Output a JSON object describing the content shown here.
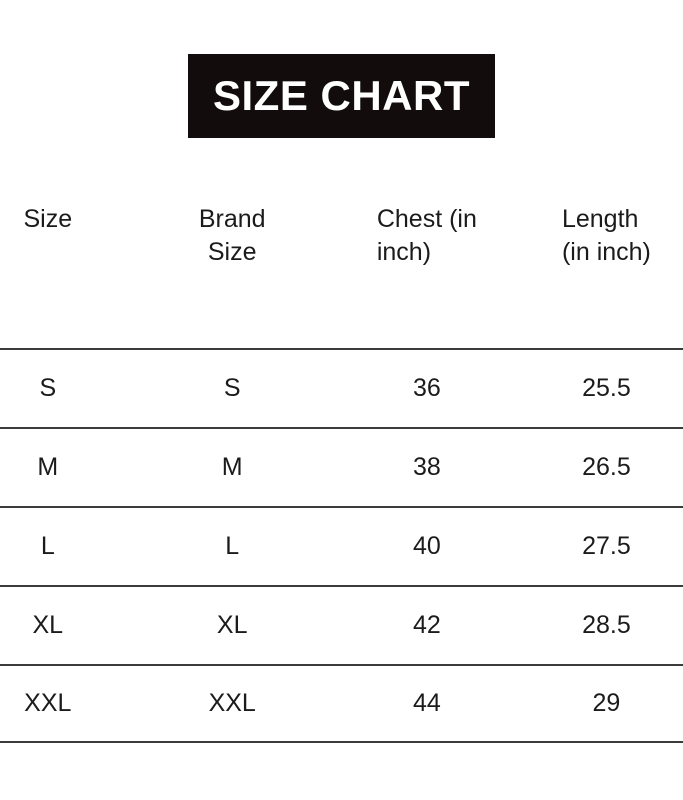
{
  "banner": {
    "title": "SIZE CHART"
  },
  "table_header": {
    "labels": [
      "Size",
      "Brand\nSize",
      "Chest (in\ninch)",
      "Length\n(in inch)"
    ]
  },
  "chart_data": {
    "type": "table",
    "title": "SIZE CHART",
    "columns": [
      "Size",
      "Brand Size",
      "Chest (in inch)",
      "Length (in inch)"
    ],
    "rows": [
      [
        "S",
        "S",
        "36",
        "25.5"
      ],
      [
        "M",
        "M",
        "38",
        "26.5"
      ],
      [
        "L",
        "L",
        "40",
        "27.5"
      ],
      [
        "XL",
        "XL",
        "42",
        "28.5"
      ],
      [
        "XXL",
        "XXL",
        "44",
        "29"
      ]
    ]
  },
  "colors": {
    "banner_bg": "#120c0c",
    "banner_text": "#ffffff",
    "rule": "#3b3b3b",
    "text": "#1b1b1b",
    "page_bg": "#ffffff"
  }
}
